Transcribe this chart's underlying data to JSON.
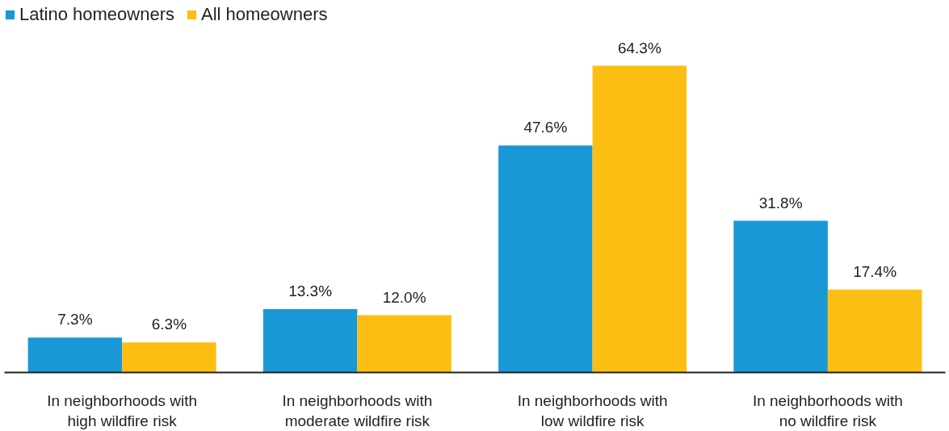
{
  "chart_data": {
    "type": "bar",
    "categories": [
      "In neighborhoods with\nhigh wildfire risk",
      "In neighborhoods with\nmoderate wildfire risk",
      "In neighborhoods with\nlow wildfire risk",
      "In neighborhoods with\nno wildfire risk"
    ],
    "series": [
      {
        "name": "Latino homeowners",
        "color": "#1a98d5",
        "values": [
          7.3,
          13.3,
          47.6,
          31.8
        ],
        "value_labels": [
          "7.3%",
          "13.3%",
          "47.6%",
          "31.8%"
        ]
      },
      {
        "name": "All homeowners",
        "color": "#fdbe14",
        "values": [
          6.3,
          12.0,
          64.3,
          17.4
        ],
        "value_labels": [
          "6.3%",
          "12.0%",
          "64.3%",
          "17.4%"
        ]
      }
    ],
    "legend": "top left",
    "grid": false
  }
}
